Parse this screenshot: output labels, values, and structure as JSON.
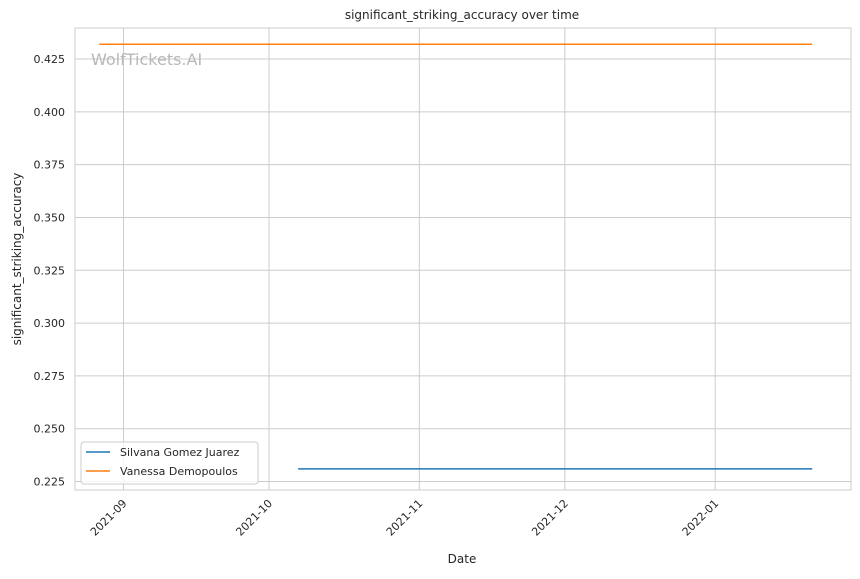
{
  "chart_data": {
    "type": "line",
    "title": "significant_striking_accuracy over time",
    "xlabel": "Date",
    "ylabel": "significant_striking_accuracy",
    "watermark": "WolfTickets.AI",
    "x_ticks": [
      "2021-09",
      "2021-10",
      "2021-11",
      "2021-12",
      "2022-01"
    ],
    "y_ticks": [
      "0.225",
      "0.250",
      "0.275",
      "0.300",
      "0.325",
      "0.350",
      "0.375",
      "0.400",
      "0.425"
    ],
    "xlim": [
      "2021-08-22",
      "2022-01-29"
    ],
    "ylim": [
      0.221,
      0.4397
    ],
    "grid": true,
    "legend_position": "lower-left",
    "series": [
      {
        "name": "Silvana Gomez Juarez",
        "color": "#1f77b4",
        "x": [
          "2021-10-07",
          "2022-01-21"
        ],
        "y": [
          0.231,
          0.231
        ]
      },
      {
        "name": "Vanessa Demopoulos",
        "color": "#ff7f0e",
        "x": [
          "2021-08-27",
          "2022-01-21"
        ],
        "y": [
          0.432,
          0.432
        ]
      }
    ]
  }
}
